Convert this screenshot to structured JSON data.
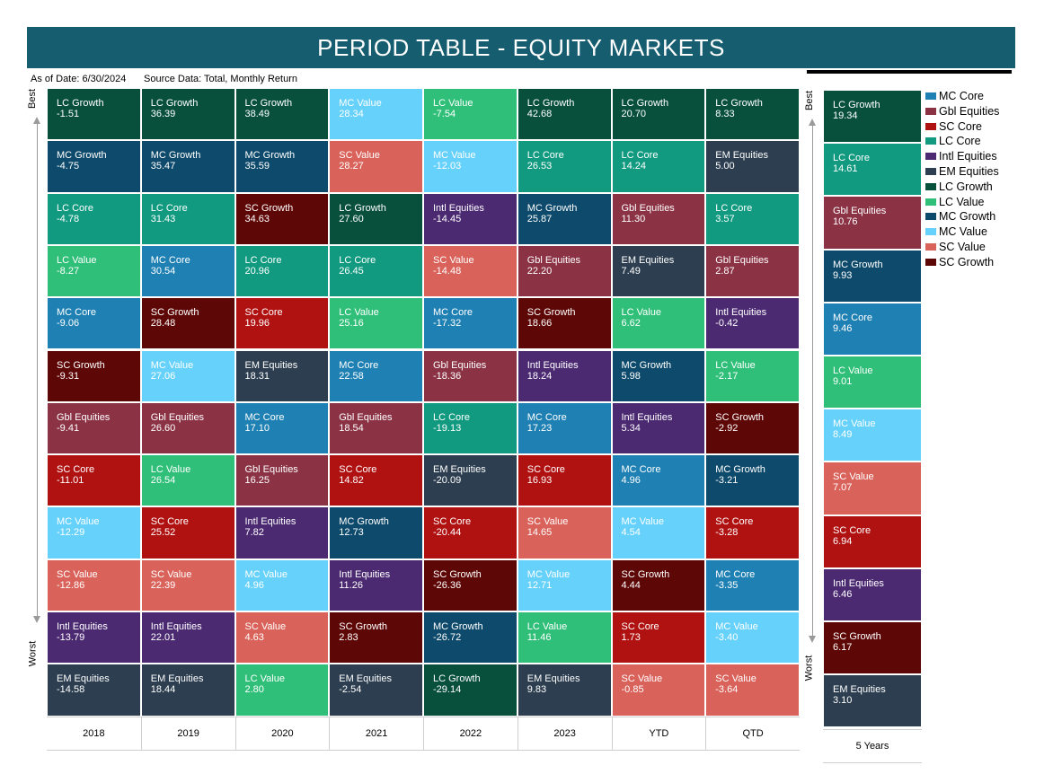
{
  "title": "PERIOD TABLE - EQUITY MARKETS",
  "as_of": "As of Date: 6/30/2024",
  "source": "Source Data: Total, Monthly Return",
  "best_label": "Best",
  "worst_label": "Worst",
  "colors": {
    "MC Core": "#1f80b3",
    "Gbl Equities": "#8b3345",
    "SC Core": "#b01212",
    "LC Core": "#119a7f",
    "Intl Equities": "#4b2a72",
    "EM Equities": "#2c3e4f",
    "LC Growth": "#08503c",
    "LC Value": "#2fbf78",
    "MC Growth": "#0e4a6b",
    "MC Value": "#66d1fa",
    "SC Value": "#d9625a",
    "SC Growth": "#5e0707"
  },
  "chart_data": {
    "type": "table",
    "columns": [
      "2018",
      "2019",
      "2020",
      "2021",
      "2022",
      "2023",
      "YTD",
      "QTD"
    ],
    "rows": [
      [
        [
          "LC Growth",
          "-1.51"
        ],
        [
          "LC Growth",
          "36.39"
        ],
        [
          "LC Growth",
          "38.49"
        ],
        [
          "MC Value",
          "28.34"
        ],
        [
          "LC Value",
          "-7.54"
        ],
        [
          "LC Growth",
          "42.68"
        ],
        [
          "LC Growth",
          "20.70"
        ],
        [
          "LC Growth",
          "8.33"
        ]
      ],
      [
        [
          "MC Growth",
          "-4.75"
        ],
        [
          "MC Growth",
          "35.47"
        ],
        [
          "MC Growth",
          "35.59"
        ],
        [
          "SC Value",
          "28.27"
        ],
        [
          "MC Value",
          "-12.03"
        ],
        [
          "LC Core",
          "26.53"
        ],
        [
          "LC Core",
          "14.24"
        ],
        [
          "EM Equities",
          "5.00"
        ]
      ],
      [
        [
          "LC Core",
          "-4.78"
        ],
        [
          "LC Core",
          "31.43"
        ],
        [
          "SC Growth",
          "34.63"
        ],
        [
          "LC Growth",
          "27.60"
        ],
        [
          "Intl Equities",
          "-14.45"
        ],
        [
          "MC Growth",
          "25.87"
        ],
        [
          "Gbl Equities",
          "11.30"
        ],
        [
          "LC Core",
          "3.57"
        ]
      ],
      [
        [
          "LC Value",
          "-8.27"
        ],
        [
          "MC Core",
          "30.54"
        ],
        [
          "LC Core",
          "20.96"
        ],
        [
          "LC Core",
          "26.45"
        ],
        [
          "SC Value",
          "-14.48"
        ],
        [
          "Gbl Equities",
          "22.20"
        ],
        [
          "EM Equities",
          "7.49"
        ],
        [
          "Gbl Equities",
          "2.87"
        ]
      ],
      [
        [
          "MC Core",
          "-9.06"
        ],
        [
          "SC Growth",
          "28.48"
        ],
        [
          "SC Core",
          "19.96"
        ],
        [
          "LC Value",
          "25.16"
        ],
        [
          "MC Core",
          "-17.32"
        ],
        [
          "SC Growth",
          "18.66"
        ],
        [
          "LC Value",
          "6.62"
        ],
        [
          "Intl Equities",
          "-0.42"
        ]
      ],
      [
        [
          "SC Growth",
          "-9.31"
        ],
        [
          "MC Value",
          "27.06"
        ],
        [
          "EM Equities",
          "18.31"
        ],
        [
          "MC Core",
          "22.58"
        ],
        [
          "Gbl Equities",
          "-18.36"
        ],
        [
          "Intl Equities",
          "18.24"
        ],
        [
          "MC Growth",
          "5.98"
        ],
        [
          "LC Value",
          "-2.17"
        ]
      ],
      [
        [
          "Gbl Equities",
          "-9.41"
        ],
        [
          "Gbl Equities",
          "26.60"
        ],
        [
          "MC Core",
          "17.10"
        ],
        [
          "Gbl Equities",
          "18.54"
        ],
        [
          "LC Core",
          "-19.13"
        ],
        [
          "MC Core",
          "17.23"
        ],
        [
          "Intl Equities",
          "5.34"
        ],
        [
          "SC Growth",
          "-2.92"
        ]
      ],
      [
        [
          "SC Core",
          "-11.01"
        ],
        [
          "LC Value",
          "26.54"
        ],
        [
          "Gbl Equities",
          "16.25"
        ],
        [
          "SC Core",
          "14.82"
        ],
        [
          "EM Equities",
          "-20.09"
        ],
        [
          "SC Core",
          "16.93"
        ],
        [
          "MC Core",
          "4.96"
        ],
        [
          "MC Growth",
          "-3.21"
        ]
      ],
      [
        [
          "MC Value",
          "-12.29"
        ],
        [
          "SC Core",
          "25.52"
        ],
        [
          "Intl Equities",
          "7.82"
        ],
        [
          "MC Growth",
          "12.73"
        ],
        [
          "SC Core",
          "-20.44"
        ],
        [
          "SC Value",
          "14.65"
        ],
        [
          "MC Value",
          "4.54"
        ],
        [
          "SC Core",
          "-3.28"
        ]
      ],
      [
        [
          "SC Value",
          "-12.86"
        ],
        [
          "SC Value",
          "22.39"
        ],
        [
          "MC Value",
          "4.96"
        ],
        [
          "Intl Equities",
          "11.26"
        ],
        [
          "SC Growth",
          "-26.36"
        ],
        [
          "MC Value",
          "12.71"
        ],
        [
          "SC Growth",
          "4.44"
        ],
        [
          "MC Core",
          "-3.35"
        ]
      ],
      [
        [
          "Intl Equities",
          "-13.79"
        ],
        [
          "Intl Equities",
          "22.01"
        ],
        [
          "SC Value",
          "4.63"
        ],
        [
          "SC Growth",
          "2.83"
        ],
        [
          "MC Growth",
          "-26.72"
        ],
        [
          "LC Value",
          "11.46"
        ],
        [
          "SC Core",
          "1.73"
        ],
        [
          "MC Value",
          "-3.40"
        ]
      ],
      [
        [
          "EM Equities",
          "-14.58"
        ],
        [
          "EM Equities",
          "18.44"
        ],
        [
          "LC Value",
          "2.80"
        ],
        [
          "EM Equities",
          "-2.54"
        ],
        [
          "LC Growth",
          "-29.14"
        ],
        [
          "EM Equities",
          "9.83"
        ],
        [
          "SC Value",
          "-0.85"
        ],
        [
          "SC Value",
          "-3.64"
        ]
      ]
    ],
    "five_year": {
      "label": "5 Years",
      "rows": [
        [
          "LC Growth",
          "19.34"
        ],
        [
          "LC Core",
          "14.61"
        ],
        [
          "Gbl Equities",
          "10.76"
        ],
        [
          "MC Growth",
          "9.93"
        ],
        [
          "MC Core",
          "9.46"
        ],
        [
          "LC Value",
          "9.01"
        ],
        [
          "MC Value",
          "8.49"
        ],
        [
          "SC Value",
          "7.07"
        ],
        [
          "SC Core",
          "6.94"
        ],
        [
          "Intl Equities",
          "6.46"
        ],
        [
          "SC Growth",
          "6.17"
        ],
        [
          "EM Equities",
          "3.10"
        ]
      ]
    },
    "legend": [
      "MC Core",
      "Gbl Equities",
      "SC Core",
      "LC Core",
      "Intl Equities",
      "EM Equities",
      "LC Growth",
      "LC Value",
      "MC Growth",
      "MC Value",
      "SC Value",
      "SC Growth"
    ]
  }
}
